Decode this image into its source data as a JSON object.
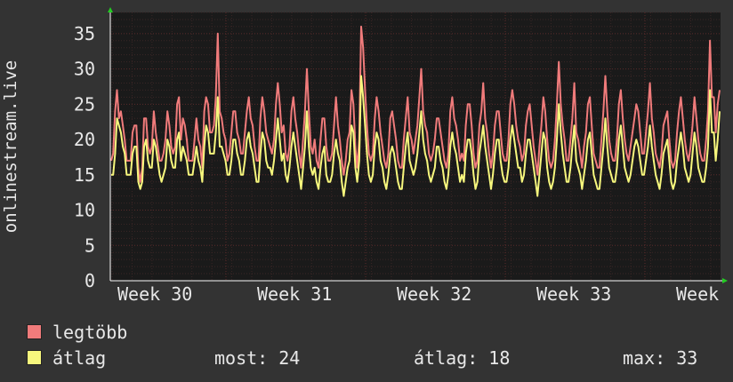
{
  "chart_data": {
    "type": "line",
    "ylabel": "onlinestream.live",
    "ylim": [
      0,
      38
    ],
    "yticks": [
      0,
      5,
      10,
      15,
      20,
      25,
      30,
      35
    ],
    "x_tick_labels": [
      "Week 30",
      "Week 31",
      "Week 32",
      "Week 33",
      "Week"
    ],
    "grid": true,
    "colors": {
      "background": "#333333",
      "plot": "#1a1a1a",
      "grid": "#5a2a2a",
      "axis": "#ffffff",
      "arrow": "#22cc22"
    },
    "series": [
      {
        "name": "legtöbb",
        "color": "#f07b7b",
        "values": [
          17,
          18,
          24,
          27,
          23,
          24,
          22,
          20,
          17,
          17,
          17,
          21,
          22,
          22,
          16,
          14,
          16,
          23,
          23,
          19,
          18,
          19,
          24,
          21,
          19,
          17,
          17,
          18,
          20,
          24,
          22,
          19,
          18,
          19,
          25,
          26,
          20,
          23,
          22,
          20,
          17,
          17,
          17,
          20,
          23,
          20,
          19,
          16,
          24,
          26,
          25,
          21,
          21,
          22,
          26,
          35,
          24,
          23,
          21,
          20,
          17,
          18,
          21,
          24,
          24,
          21,
          20,
          18,
          18,
          21,
          24,
          26,
          23,
          22,
          19,
          17,
          17,
          23,
          26,
          24,
          21,
          20,
          19,
          18,
          20,
          25,
          28,
          25,
          21,
          22,
          18,
          17,
          19,
          24,
          26,
          23,
          21,
          18,
          16,
          20,
          24,
          30,
          24,
          19,
          18,
          20,
          17,
          16,
          20,
          23,
          23,
          19,
          17,
          17,
          18,
          22,
          26,
          22,
          20,
          17,
          15,
          17,
          20,
          21,
          27,
          25,
          19,
          16,
          20,
          36,
          33,
          27,
          22,
          18,
          17,
          18,
          23,
          26,
          24,
          21,
          19,
          17,
          16,
          18,
          23,
          24,
          22,
          20,
          17,
          16,
          16,
          20,
          23,
          26,
          21,
          20,
          18,
          20,
          22,
          26,
          30,
          24,
          22,
          21,
          18,
          17,
          18,
          20,
          23,
          23,
          21,
          19,
          17,
          16,
          18,
          24,
          26,
          23,
          22,
          20,
          17,
          18,
          17,
          22,
          25,
          25,
          22,
          18,
          16,
          17,
          22,
          24,
          28,
          23,
          21,
          18,
          16,
          18,
          22,
          24,
          24,
          21,
          18,
          17,
          17,
          20,
          25,
          27,
          25,
          22,
          20,
          19,
          17,
          18,
          22,
          24,
          25,
          22,
          19,
          17,
          15,
          19,
          22,
          26,
          24,
          20,
          17,
          16,
          17,
          20,
          25,
          31,
          25,
          22,
          20,
          17,
          17,
          20,
          23,
          28,
          21,
          20,
          18,
          16,
          19,
          21,
          25,
          26,
          22,
          18,
          17,
          16,
          16,
          20,
          24,
          29,
          24,
          20,
          18,
          17,
          17,
          20,
          25,
          27,
          23,
          20,
          18,
          17,
          19,
          21,
          23,
          25,
          24,
          21,
          18,
          18,
          21,
          24,
          28,
          23,
          21,
          18,
          17,
          16,
          18,
          22,
          23,
          24,
          20,
          17,
          16,
          17,
          21,
          24,
          26,
          23,
          20,
          18,
          17,
          19,
          22,
          26,
          23,
          20,
          18,
          17,
          17,
          20,
          24,
          34,
          26,
          26,
          21,
          25,
          27
        ]
      },
      {
        "name": "átlag",
        "color": "#f7f77d",
        "values": [
          15,
          15,
          18,
          23,
          22,
          21,
          19,
          18,
          15,
          15,
          15,
          18,
          19,
          19,
          14,
          13,
          14,
          19,
          20,
          17,
          16,
          16,
          20,
          19,
          17,
          15,
          14,
          15,
          16,
          20,
          19,
          17,
          16,
          16,
          20,
          21,
          17,
          19,
          18,
          17,
          15,
          15,
          15,
          17,
          19,
          17,
          16,
          14,
          19,
          22,
          21,
          18,
          18,
          18,
          21,
          26,
          19,
          19,
          18,
          17,
          15,
          15,
          17,
          20,
          20,
          18,
          17,
          15,
          15,
          17,
          20,
          21,
          19,
          18,
          16,
          14,
          14,
          18,
          21,
          20,
          17,
          16,
          16,
          15,
          17,
          20,
          23,
          20,
          17,
          18,
          15,
          14,
          16,
          19,
          21,
          19,
          17,
          15,
          13,
          16,
          19,
          24,
          19,
          16,
          15,
          16,
          14,
          13,
          16,
          18,
          19,
          15,
          14,
          14,
          15,
          18,
          20,
          18,
          17,
          14,
          12,
          14,
          16,
          17,
          22,
          21,
          16,
          14,
          17,
          29,
          26,
          22,
          18,
          15,
          14,
          15,
          19,
          21,
          20,
          17,
          16,
          14,
          13,
          15,
          18,
          19,
          18,
          16,
          14,
          13,
          13,
          16,
          19,
          21,
          17,
          16,
          15,
          16,
          18,
          21,
          24,
          20,
          18,
          17,
          15,
          14,
          15,
          16,
          19,
          19,
          17,
          16,
          14,
          13,
          15,
          19,
          21,
          19,
          18,
          16,
          14,
          15,
          14,
          18,
          20,
          20,
          18,
          15,
          13,
          14,
          18,
          20,
          22,
          19,
          17,
          15,
          13,
          15,
          18,
          20,
          20,
          17,
          15,
          14,
          14,
          16,
          20,
          22,
          20,
          18,
          16,
          16,
          14,
          15,
          18,
          20,
          20,
          18,
          16,
          14,
          12,
          15,
          18,
          21,
          20,
          16,
          14,
          13,
          14,
          16,
          20,
          25,
          21,
          18,
          16,
          14,
          14,
          16,
          19,
          22,
          17,
          16,
          15,
          13,
          15,
          17,
          20,
          21,
          18,
          15,
          14,
          13,
          13,
          16,
          19,
          23,
          19,
          16,
          15,
          14,
          14,
          16,
          20,
          22,
          19,
          16,
          15,
          14,
          15,
          17,
          19,
          20,
          19,
          17,
          15,
          15,
          17,
          19,
          22,
          19,
          17,
          15,
          14,
          13,
          15,
          18,
          19,
          20,
          17,
          14,
          13,
          14,
          17,
          19,
          21,
          19,
          16,
          15,
          14,
          15,
          18,
          21,
          19,
          16,
          15,
          14,
          14,
          16,
          19,
          27,
          21,
          21,
          17,
          20,
          24
        ]
      }
    ]
  },
  "legend": {
    "items": [
      {
        "label": "legtöbb",
        "color": "#f07b7b"
      },
      {
        "label": "átlag",
        "color": "#f7f77d"
      }
    ],
    "now_label": "most:",
    "now_value": "24",
    "avg_label": "átlag:",
    "avg_value": "18",
    "max_label": "max:",
    "max_value": "33"
  }
}
